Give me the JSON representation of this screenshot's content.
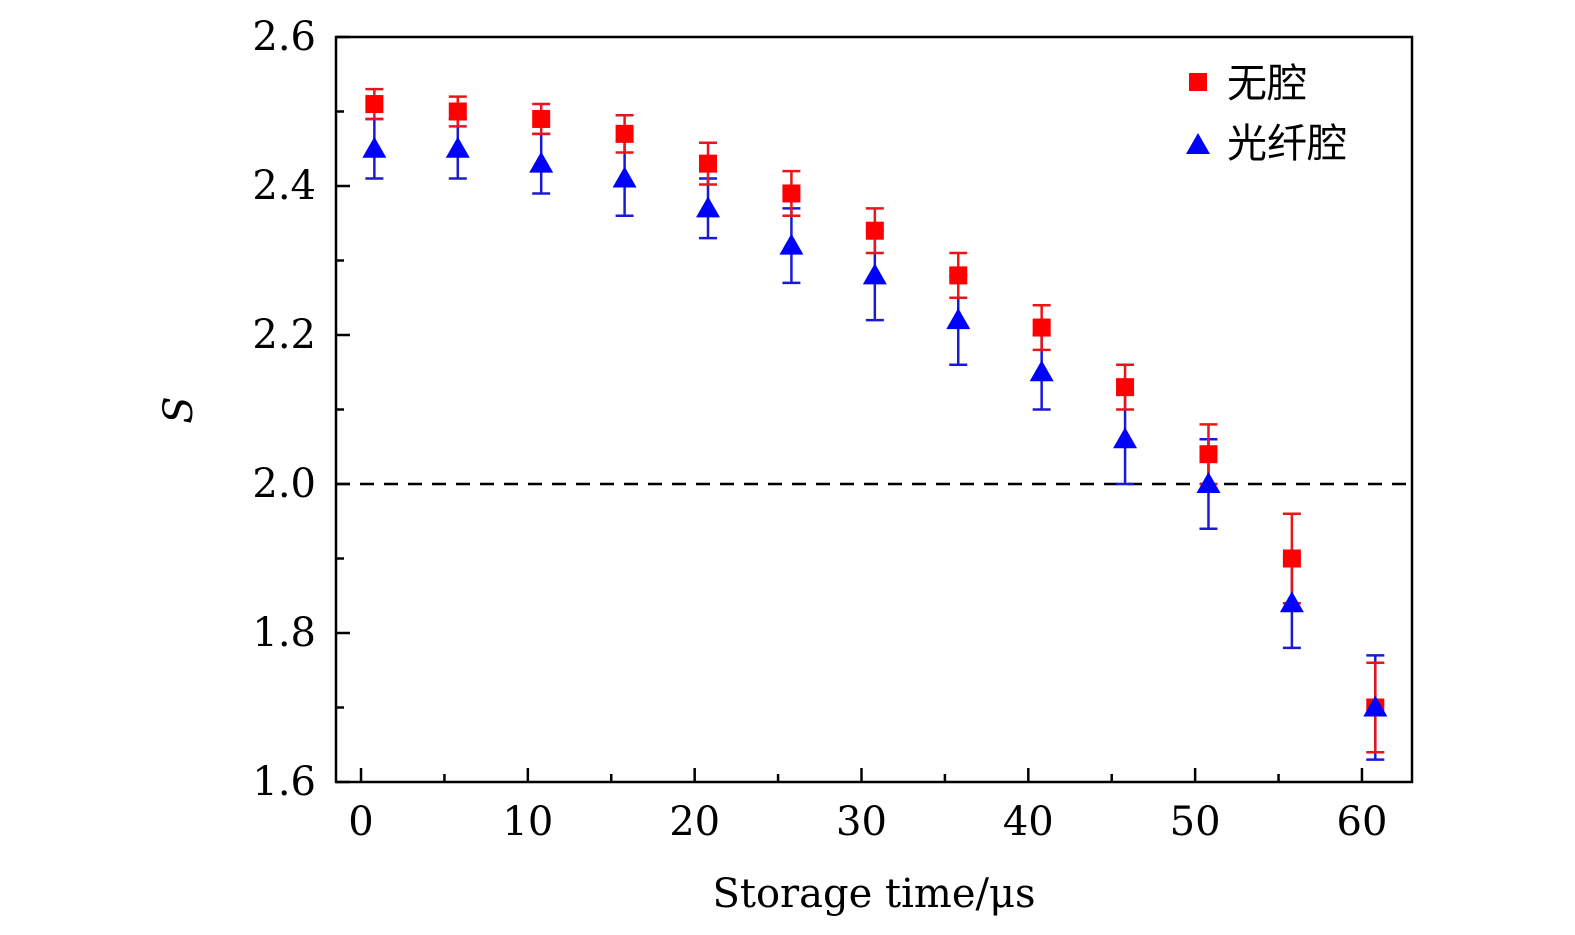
{
  "chart_data": {
    "type": "scatter",
    "xlabel": "Storage time/μs",
    "ylabel": "S",
    "xlim": [
      -1.5,
      63
    ],
    "ylim": [
      1.6,
      2.6
    ],
    "x_ticks": [
      0,
      10,
      20,
      30,
      40,
      50,
      60
    ],
    "x_tick_labels": [
      "0",
      "10",
      "20",
      "30",
      "40",
      "50",
      "60"
    ],
    "y_ticks": [
      1.6,
      1.8,
      2.0,
      2.2,
      2.4,
      2.6
    ],
    "y_tick_labels": [
      "1.6",
      "1.8",
      "2.0",
      "2.2",
      "2.4",
      "2.6"
    ],
    "reference_line": {
      "y": 2.0,
      "style": "dashed",
      "color": "#000000"
    },
    "legend_position": "top-right",
    "series": [
      {
        "name": "无腔",
        "marker": "square",
        "color": "#ff0000",
        "errbar_color": "#e8161b",
        "x": [
          0.8,
          5.8,
          10.8,
          15.8,
          20.8,
          25.8,
          30.8,
          35.8,
          40.8,
          45.8,
          50.8,
          55.8,
          60.8
        ],
        "y": [
          2.51,
          2.5,
          2.49,
          2.47,
          2.43,
          2.39,
          2.34,
          2.28,
          2.21,
          2.13,
          2.04,
          1.9,
          1.7
        ],
        "err": [
          0.02,
          0.02,
          0.02,
          0.025,
          0.028,
          0.03,
          0.03,
          0.03,
          0.03,
          0.03,
          0.04,
          0.06,
          0.06
        ]
      },
      {
        "name": "光纤腔",
        "marker": "triangle",
        "color": "#0000ff",
        "errbar_color": "#1a1ad6",
        "x": [
          0.8,
          5.8,
          10.8,
          15.8,
          20.8,
          25.8,
          30.8,
          35.8,
          40.8,
          45.8,
          50.8,
          55.8,
          60.8
        ],
        "y": [
          2.45,
          2.45,
          2.43,
          2.41,
          2.37,
          2.32,
          2.28,
          2.22,
          2.15,
          2.06,
          2.0,
          1.84,
          1.7
        ],
        "err": [
          0.04,
          0.04,
          0.04,
          0.05,
          0.04,
          0.05,
          0.06,
          0.06,
          0.05,
          0.06,
          0.06,
          0.06,
          0.07
        ]
      }
    ]
  }
}
